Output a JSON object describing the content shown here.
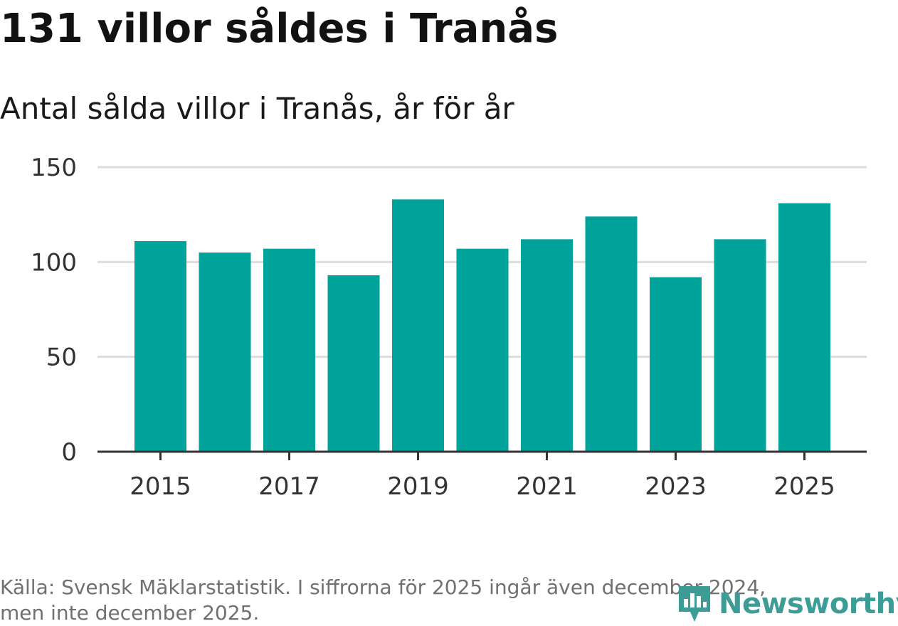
{
  "header": {
    "title": "131 villor såldes i Tranås",
    "subtitle": "Antal sålda villor i Tranås, år för år"
  },
  "footer": {
    "source_line_1": "Källa: Svensk Mäklarstatistik. I siffrorna för 2025 ingår även december 2024,",
    "source_line_2": "men inte december 2025."
  },
  "logo": {
    "text": "Newsworthy",
    "icon": "bar-chart-location-icon",
    "color": "#3e9c96"
  },
  "colors": {
    "bar": "#00a39a",
    "grid": "#dddddd",
    "axis": "#333333",
    "title": "#121212",
    "footer": "#707070"
  },
  "chart_data": {
    "type": "bar",
    "title": "Antal sålda villor i Tranås, år för år",
    "xlabel": "",
    "ylabel": "",
    "categories": [
      "2015",
      "2016",
      "2017",
      "2018",
      "2019",
      "2020",
      "2021",
      "2022",
      "2023",
      "2024",
      "2025"
    ],
    "values": [
      111,
      105,
      107,
      93,
      133,
      107,
      112,
      124,
      92,
      112,
      131
    ],
    "x_tick_labels": [
      "2015",
      "2017",
      "2019",
      "2021",
      "2023",
      "2025"
    ],
    "y_ticks": [
      0,
      50,
      100,
      150
    ],
    "y_tick_labels": [
      "0",
      "50",
      "100",
      "150"
    ],
    "ylim": [
      0,
      150
    ],
    "grid": true,
    "legend": "none"
  }
}
